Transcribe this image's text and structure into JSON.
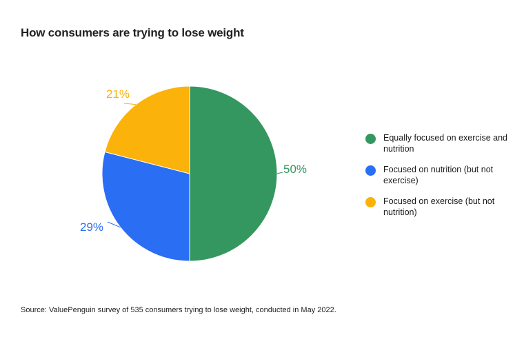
{
  "chart_data": {
    "type": "pie",
    "title": "How consumers are trying to lose weight",
    "slices": [
      {
        "label": "Equally focused on exercise and nutrition",
        "value": 50,
        "display": "50%",
        "color": "#34975f"
      },
      {
        "label": "Focused on nutrition (but not exercise)",
        "value": 29,
        "display": "29%",
        "color": "#2a6ef4"
      },
      {
        "label": "Focused on exercise (but not nutrition)",
        "value": 21,
        "display": "21%",
        "color": "#fbb20a"
      }
    ],
    "legend_position": "right"
  },
  "footer": {
    "source": "Source: ValuePenguin survey of 535 consumers trying to lose weight, conducted in May 2022."
  }
}
